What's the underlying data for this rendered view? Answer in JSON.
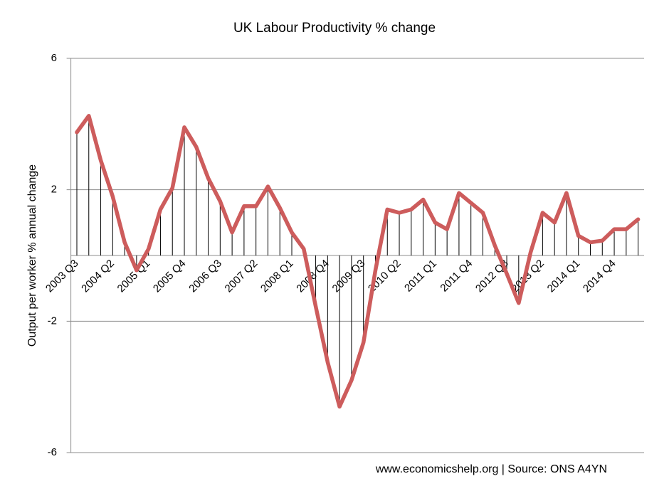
{
  "chart_data": {
    "type": "line",
    "title": "UK Labour Productivity % change",
    "y_label": "Output per worker % annual change",
    "source": "www.economicshelp.org | Source: ONS A4YN",
    "categories": [
      "2003 Q3",
      null,
      null,
      "2004 Q2",
      null,
      null,
      "2005 Q1",
      null,
      null,
      "2005 Q4",
      null,
      null,
      "2006 Q3",
      null,
      null,
      "2007 Q2",
      null,
      null,
      "2008 Q1",
      null,
      null,
      "2008 Q4",
      null,
      null,
      "2009 Q3",
      null,
      null,
      "2010 Q2",
      null,
      null,
      "2011 Q1",
      null,
      null,
      "2011 Q4",
      null,
      null,
      "2012 Q3",
      null,
      null,
      "2013 Q2",
      null,
      null,
      "2014 Q1",
      null,
      null,
      "2014 Q4",
      null,
      null
    ],
    "series": [
      {
        "name": "Output per worker",
        "color": "#cd5c5c",
        "values": [
          3.75,
          4.25,
          2.9,
          1.8,
          0.4,
          -0.45,
          0.2,
          1.4,
          2.05,
          3.9,
          3.3,
          2.35,
          1.65,
          0.7,
          1.5,
          1.5,
          2.1,
          1.45,
          0.7,
          0.2,
          -1.55,
          -3.25,
          -4.6,
          -3.8,
          -2.65,
          -0.45,
          1.4,
          1.3,
          1.4,
          1.7,
          1.0,
          0.8,
          1.9,
          1.6,
          1.3,
          0.3,
          -0.55,
          -1.45,
          0.1,
          1.3,
          1.0,
          1.9,
          0.6,
          0.4,
          0.45,
          0.8,
          0.8,
          1.1
        ]
      }
    ],
    "ylim": [
      -6,
      6
    ],
    "yticks": [
      -6,
      -2,
      2,
      6
    ],
    "grid": true,
    "drop_lines": true
  }
}
